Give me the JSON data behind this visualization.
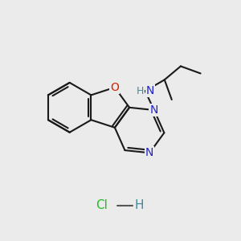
{
  "background_color": "#ebebeb",
  "bond_color": "#1a1a1a",
  "bond_width": 1.5,
  "atom_colors": {
    "N": "#2222cc",
    "O": "#cc2200",
    "NH": "#448899",
    "Cl": "#22bb22",
    "H_hcl": "#448899"
  },
  "font_size": 10
}
